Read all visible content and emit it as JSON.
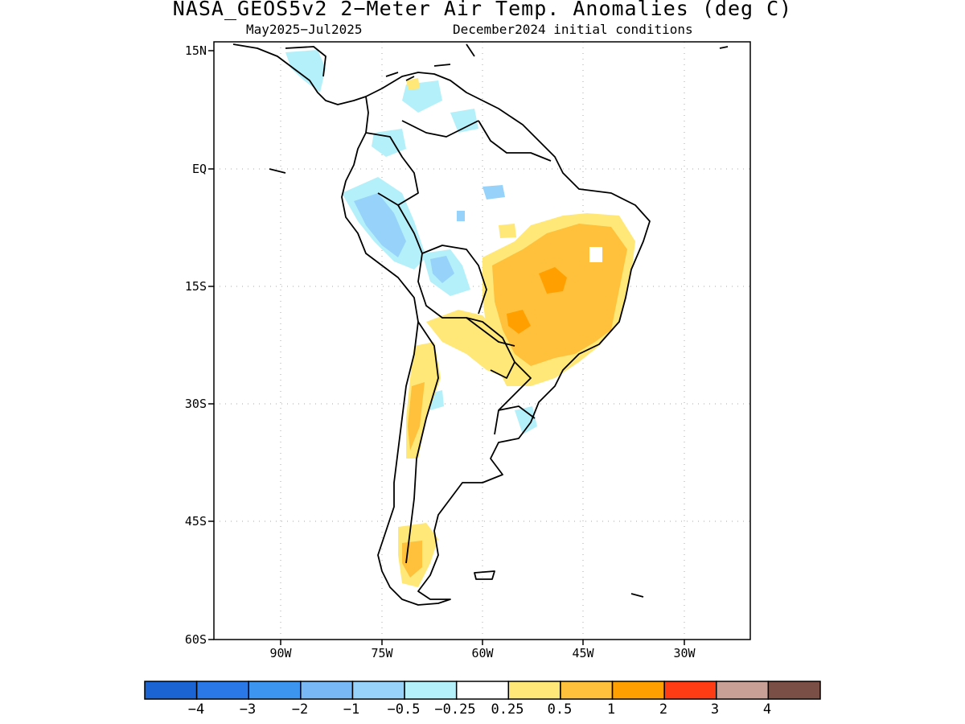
{
  "title": "NASA_GEOS5v2 2-Meter Air Temp. Anomalies (deg C)",
  "subtitle_left": "May2025-Jul2025",
  "subtitle_right": "December2024 initial conditions",
  "lat_labels": [
    "15N",
    "EQ",
    "15S",
    "30S",
    "45S",
    "60S"
  ],
  "lon_labels": [
    "90W",
    "75W",
    "60W",
    "45W",
    "30W"
  ],
  "colorbar": {
    "colors": [
      "#1a64d4",
      "#2a78e8",
      "#3c96f0",
      "#78b8f4",
      "#96d2fa",
      "#b4f0fa",
      "#ffffff",
      "#ffe878",
      "#ffc03c",
      "#ffa000",
      "#ff3c14",
      "#c8a096",
      "#7a5046"
    ],
    "labels": [
      "-4",
      "-3",
      "-2",
      "-1",
      "-0.5",
      "-0.25",
      "0.25",
      "0.5",
      "1",
      "2",
      "3",
      "4"
    ]
  }
}
